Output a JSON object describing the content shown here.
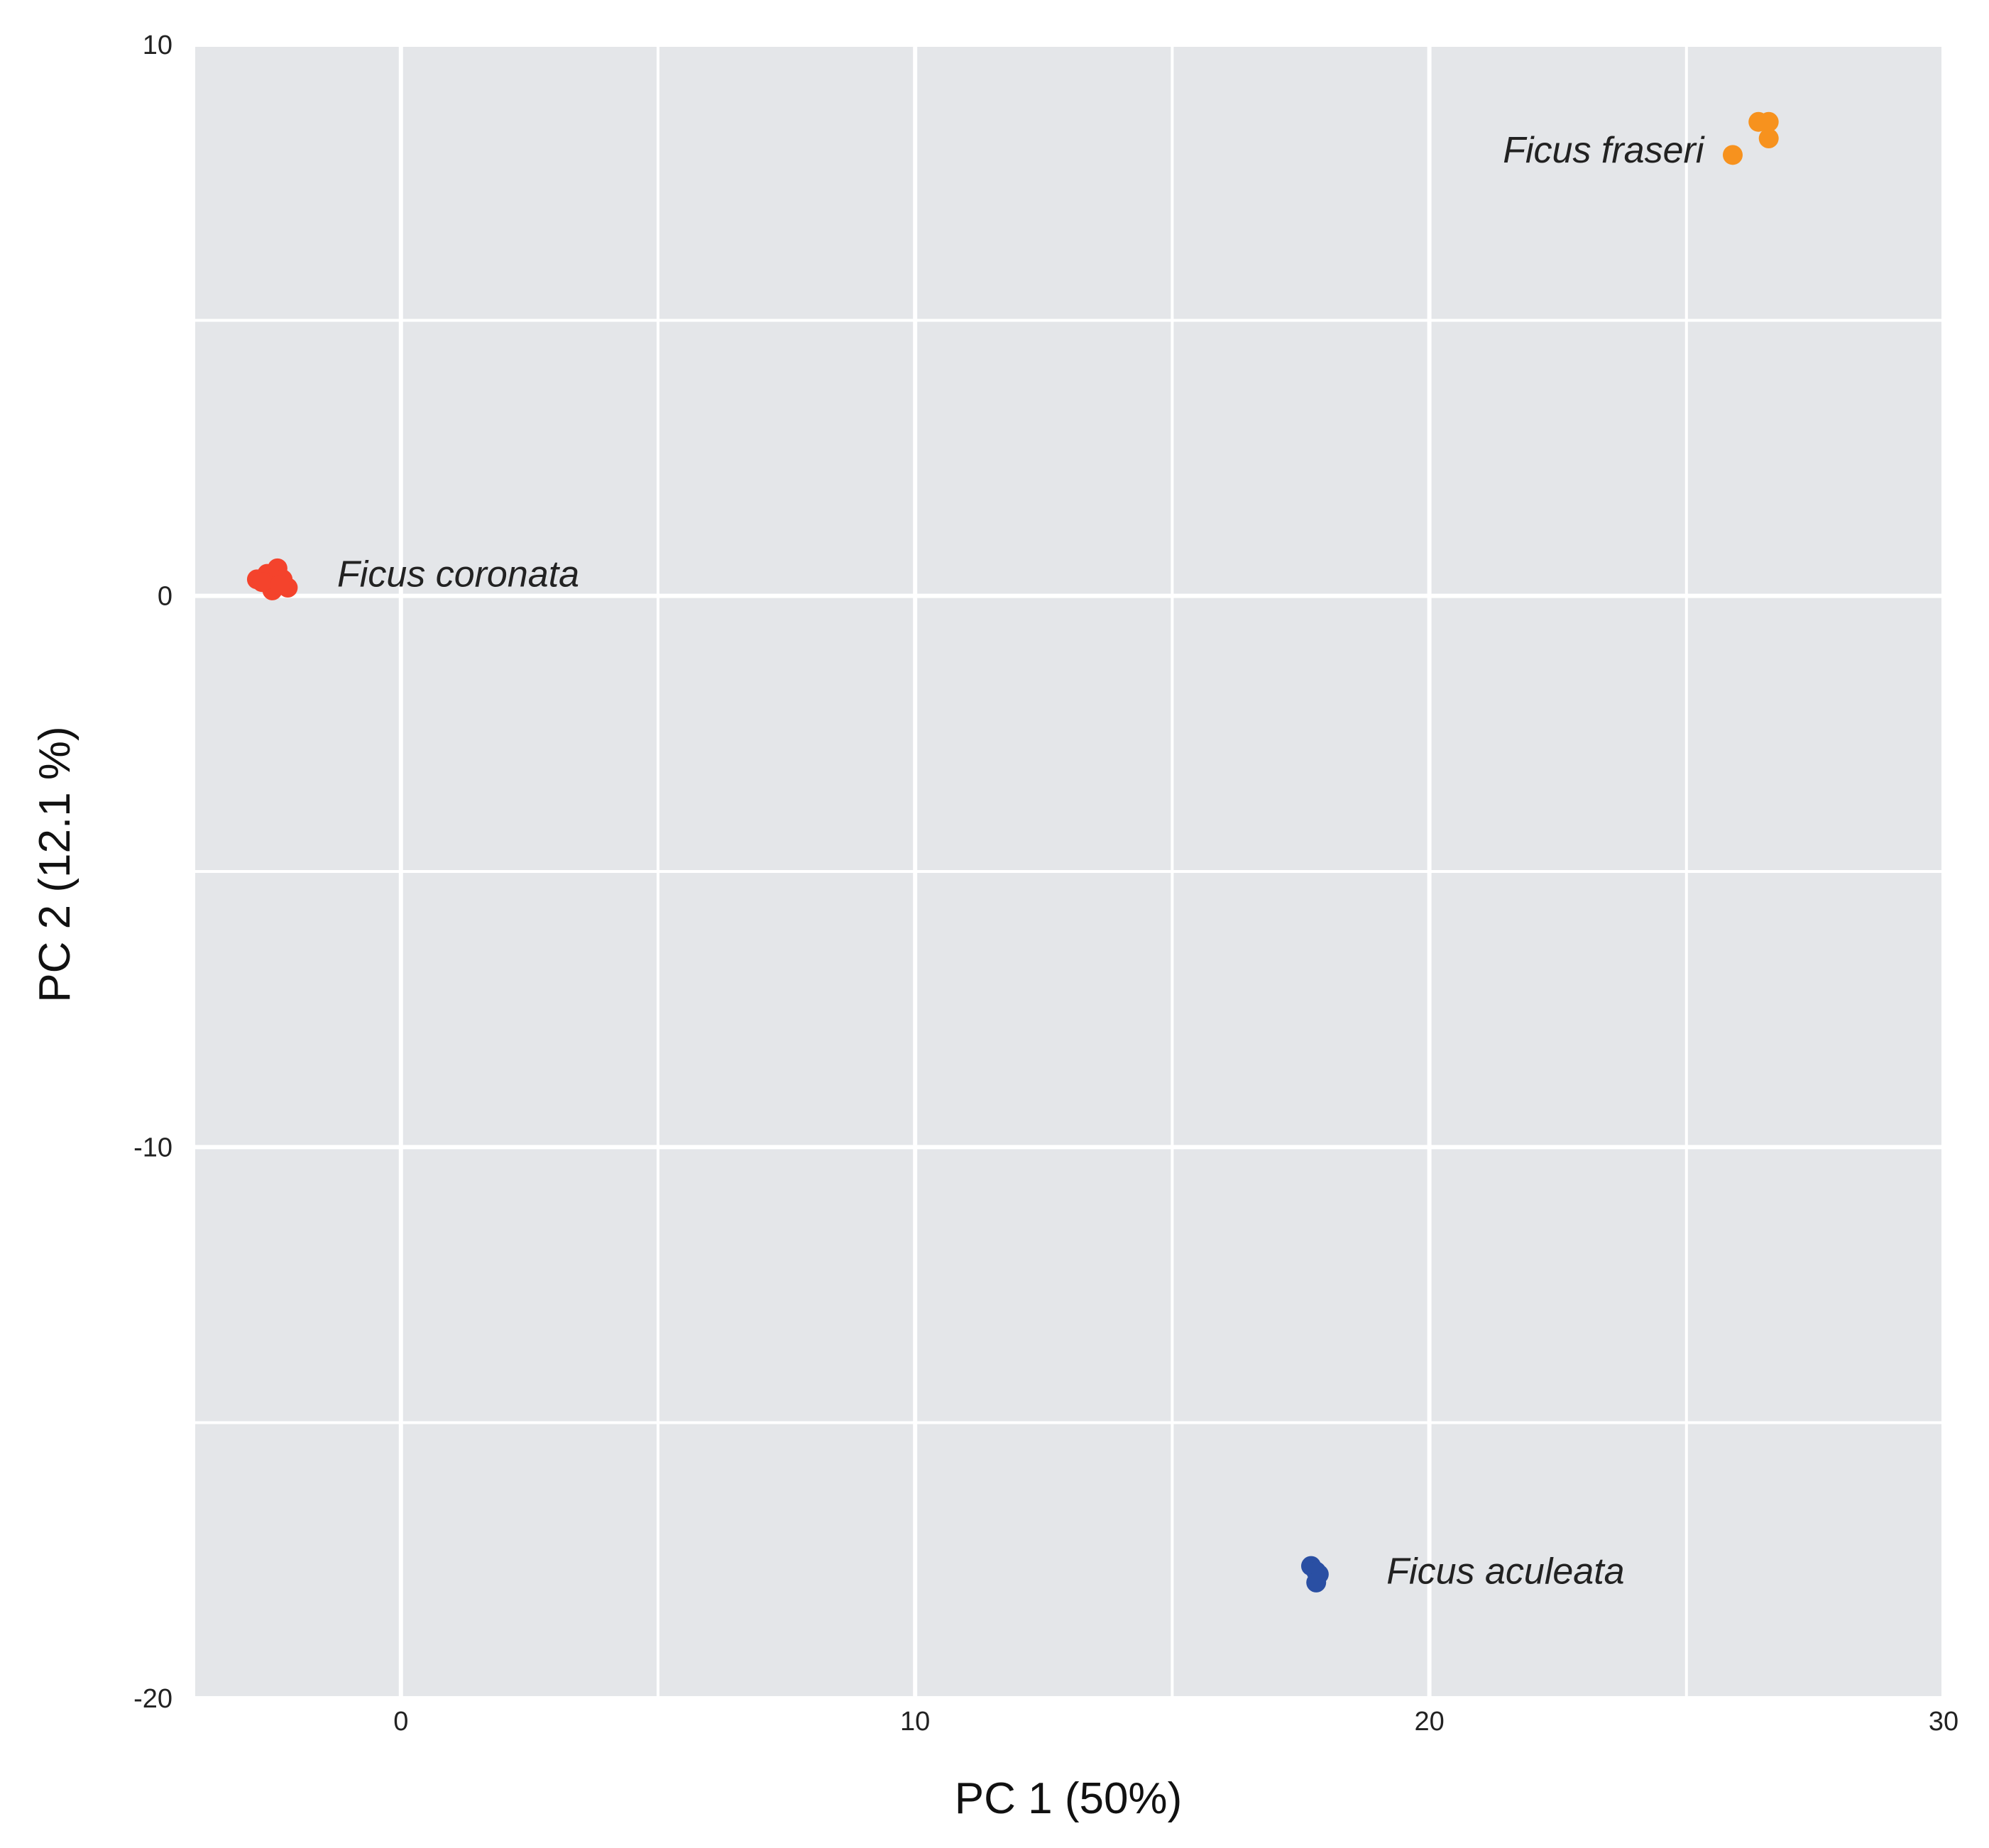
{
  "chart_data": {
    "type": "scatter",
    "title": "",
    "xlabel": "PC 1 (50%)",
    "ylabel": "PC 2 (12.1  %)",
    "xlim": [
      -4,
      30
    ],
    "ylim": [
      -20,
      10
    ],
    "x_ticks": [
      "0",
      "10",
      "20",
      "30"
    ],
    "y_ticks": [
      "10",
      "0",
      "-10",
      "-20"
    ],
    "x_tick_values": [
      0,
      10,
      20,
      30
    ],
    "y_tick_values": [
      10,
      0,
      -10,
      -20
    ],
    "x_minor_gridlines": [
      5,
      15,
      25
    ],
    "y_minor_gridlines": [
      5,
      -5,
      -15
    ],
    "grid": true,
    "legend": "none",
    "background": "#e4e6e9",
    "series": [
      {
        "name": "Ficus coronata",
        "color": "#f4432c",
        "points": [
          {
            "x": -2.8,
            "y": 0.3
          },
          {
            "x": -2.6,
            "y": 0.4
          },
          {
            "x": -2.4,
            "y": 0.5
          },
          {
            "x": -2.3,
            "y": 0.3
          },
          {
            "x": -2.5,
            "y": 0.1
          },
          {
            "x": -2.2,
            "y": 0.15
          },
          {
            "x": -2.7,
            "y": 0.25
          },
          {
            "x": -2.35,
            "y": 0.2
          }
        ]
      },
      {
        "name": "Ficus fraseri",
        "color": "#f7921e",
        "points": [
          {
            "x": 25.9,
            "y": 8.0
          },
          {
            "x": 26.4,
            "y": 8.6
          },
          {
            "x": 26.6,
            "y": 8.6
          },
          {
            "x": 26.6,
            "y": 8.3
          }
        ]
      },
      {
        "name": "Ficus aculeata",
        "color": "#2a4fa3",
        "points": [
          {
            "x": 17.7,
            "y": -17.6
          },
          {
            "x": 17.8,
            "y": -17.7
          },
          {
            "x": 17.85,
            "y": -17.75
          },
          {
            "x": 17.8,
            "y": -17.9
          }
        ]
      }
    ]
  }
}
